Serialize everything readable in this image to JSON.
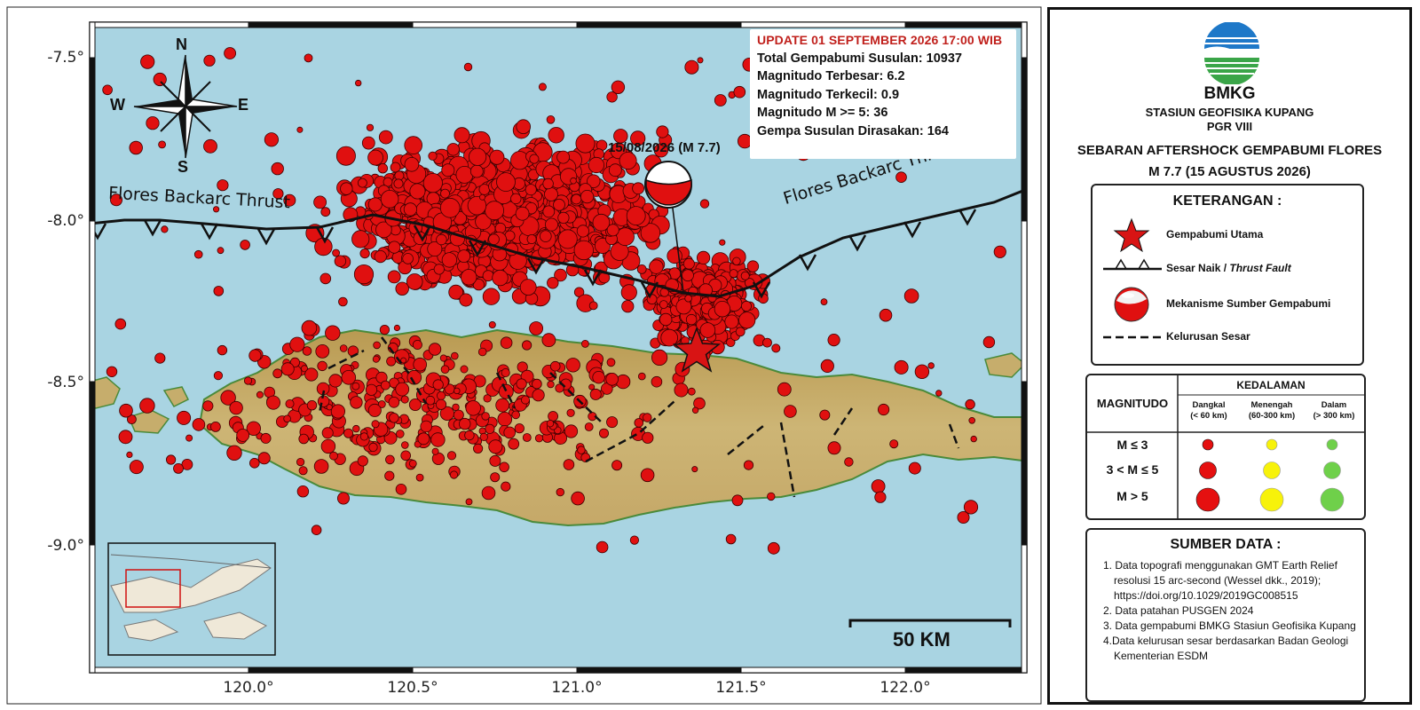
{
  "map": {
    "lat_ticks": [
      "-7.5°",
      "-8.0°",
      "-8.5°",
      "-9.0°"
    ],
    "lon_ticks": [
      "120.0°",
      "120.5°",
      "121.0°",
      "121.5°",
      "122.0°"
    ],
    "fault_label_left": "Flores Backarc Thrust",
    "fault_label_right": "Flores Backarc Thrust",
    "mainshock_label": "15/08/2026 (M 7.7)",
    "scalebar_label": "50 KM",
    "compass": {
      "n": "N",
      "s": "S",
      "e": "E",
      "w": "W"
    },
    "colors": {
      "sea": "#a9d4e2",
      "land": "#c9ae6a",
      "quake": "#e01010",
      "mainshock": "#d81414"
    }
  },
  "info": {
    "update": "UPDATE 01 SEPTEMBER 2026 17:00 WIB",
    "total": "Total Gempabumi Susulan: 10937",
    "max_mag": "Magnitudo Terbesar: 6.2",
    "min_mag": "Magnitudo Terkecil: 0.9",
    "mag_ge5": "Magnitudo M >= 5: 36",
    "felt": "Gempa Susulan Dirasakan: 164"
  },
  "panel": {
    "org": "BMKG",
    "station": "STASIUN GEOFISIKA KUPANG",
    "region": "PGR VIII",
    "title_line1": "SEBARAN AFTERSHOCK GEMPABUMI FLORES",
    "title_line2": "M 7.7 (15 AGUSTUS 2026)",
    "legend": {
      "title": "KETERANGAN :",
      "mainshock": "Gempabumi  Utama",
      "thrust_prefix": "Sesar Naik /",
      "thrust_italic": "Thrust Fault",
      "mechanism": "Mekanisme Sumber Gempabumi",
      "lineament": "Kelurusan Sesar"
    },
    "depth_table": {
      "magnitude_header": "MAGNITUDO",
      "depth_header": "KEDALAMAN",
      "shallow": "Dangkal",
      "shallow_range": "(< 60 km)",
      "medium": "Menengah",
      "medium_range": "(60-300 km)",
      "deep": "Dalam",
      "deep_range": "(> 300 km)",
      "rows": [
        "M ≤ 3",
        "3 < M ≤ 5",
        "M > 5"
      ],
      "colors": {
        "shallow": "#e51010",
        "medium": "#f7f20a",
        "deep": "#6fd04a"
      }
    },
    "sources": {
      "title": "SUMBER DATA :",
      "items": [
        "1. Data topografi menggunakan GMT Earth Relief resolusi 15 arc-second (Wessel dkk., 2019); https://doi.org/10.1029/2019GC008515",
        "2. Data patahan PUSGEN 2024",
        "3. Data gempabumi BMKG Stasiun Geofisika Kupang",
        "4.Data kelurusan sesar berdasarkan Badan Geologi Kementerian ESDM"
      ]
    }
  }
}
